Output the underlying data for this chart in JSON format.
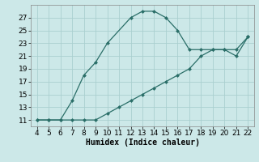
{
  "title": "",
  "xlabel": "Humidex (Indice chaleur)",
  "ylabel": "",
  "bg_color": "#cce8e8",
  "line_color": "#2a6e68",
  "line1_x": [
    4,
    5,
    6,
    7,
    8,
    9,
    10,
    12,
    13,
    14,
    15,
    16,
    17,
    18,
    19,
    20,
    21,
    22
  ],
  "line1_y": [
    11,
    11,
    11,
    14,
    18,
    20,
    23,
    27,
    28,
    28,
    27,
    25,
    22,
    22,
    22,
    22,
    21,
    24
  ],
  "line2_x": [
    4,
    5,
    6,
    7,
    8,
    9,
    10,
    11,
    12,
    13,
    14,
    15,
    16,
    17,
    18,
    19,
    20,
    21,
    22
  ],
  "line2_y": [
    11,
    11,
    11,
    11,
    11,
    11,
    12,
    13,
    14,
    15,
    16,
    17,
    18,
    19,
    21,
    22,
    22,
    22,
    24
  ],
  "xlim_min": 3.5,
  "xlim_max": 22.5,
  "ylim_min": 10,
  "ylim_max": 29,
  "xticks": [
    4,
    5,
    6,
    7,
    8,
    9,
    10,
    11,
    12,
    13,
    14,
    15,
    16,
    17,
    18,
    19,
    20,
    21,
    22
  ],
  "yticks": [
    11,
    13,
    15,
    17,
    19,
    21,
    23,
    25,
    27
  ],
  "grid_color": "#aacfcf",
  "tick_fontsize": 6.5,
  "xlabel_fontsize": 7,
  "marker_size": 2.5,
  "line_width": 0.9
}
